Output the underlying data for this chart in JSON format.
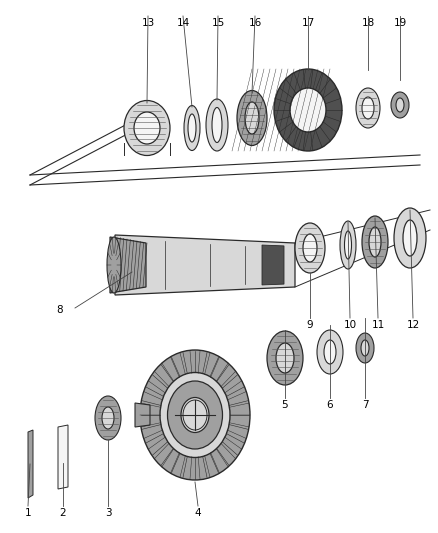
{
  "bg_color": "#ffffff",
  "line_color": "#2a2a2a",
  "part_gray": "#a0a0a0",
  "part_dark": "#505050",
  "part_light": "#d8d8d8",
  "part_white": "#f5f5f5",
  "hatch_color": "#555555",
  "label_fs": 7.5,
  "annot_lw": 0.6,
  "annot_color": "#444444"
}
